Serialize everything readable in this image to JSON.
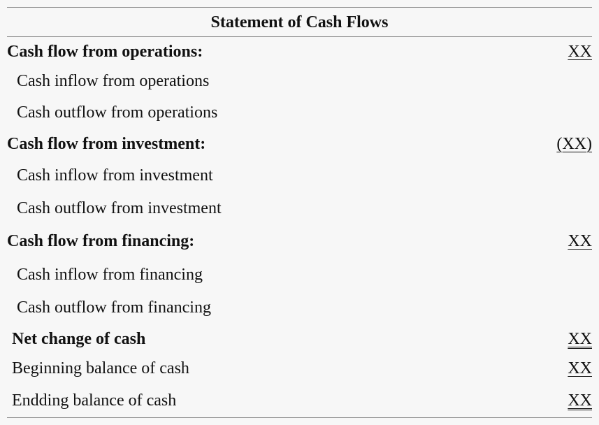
{
  "statement": {
    "title": "Statement of Cash Flows",
    "rows": [
      {
        "label": "Cash flow from operations:",
        "amount": "XX"
      },
      {
        "label": "Cash inflow from operations"
      },
      {
        "label": "Cash outflow from operations"
      },
      {
        "label": "Cash flow from investment:",
        "amount": "(XX)"
      },
      {
        "label": "Cash inflow from investment"
      },
      {
        "label": "Cash outflow from investment"
      },
      {
        "label": "Cash flow from financing:",
        "amount": "XX"
      },
      {
        "label": "Cash inflow from financing"
      },
      {
        "label": "Cash outflow from financing"
      },
      {
        "label": "Net change of cash",
        "amount": "XX"
      },
      {
        "label": "Beginning balance of cash",
        "amount": "XX"
      },
      {
        "label": "Endding balance of cash",
        "amount": "XX"
      }
    ]
  }
}
